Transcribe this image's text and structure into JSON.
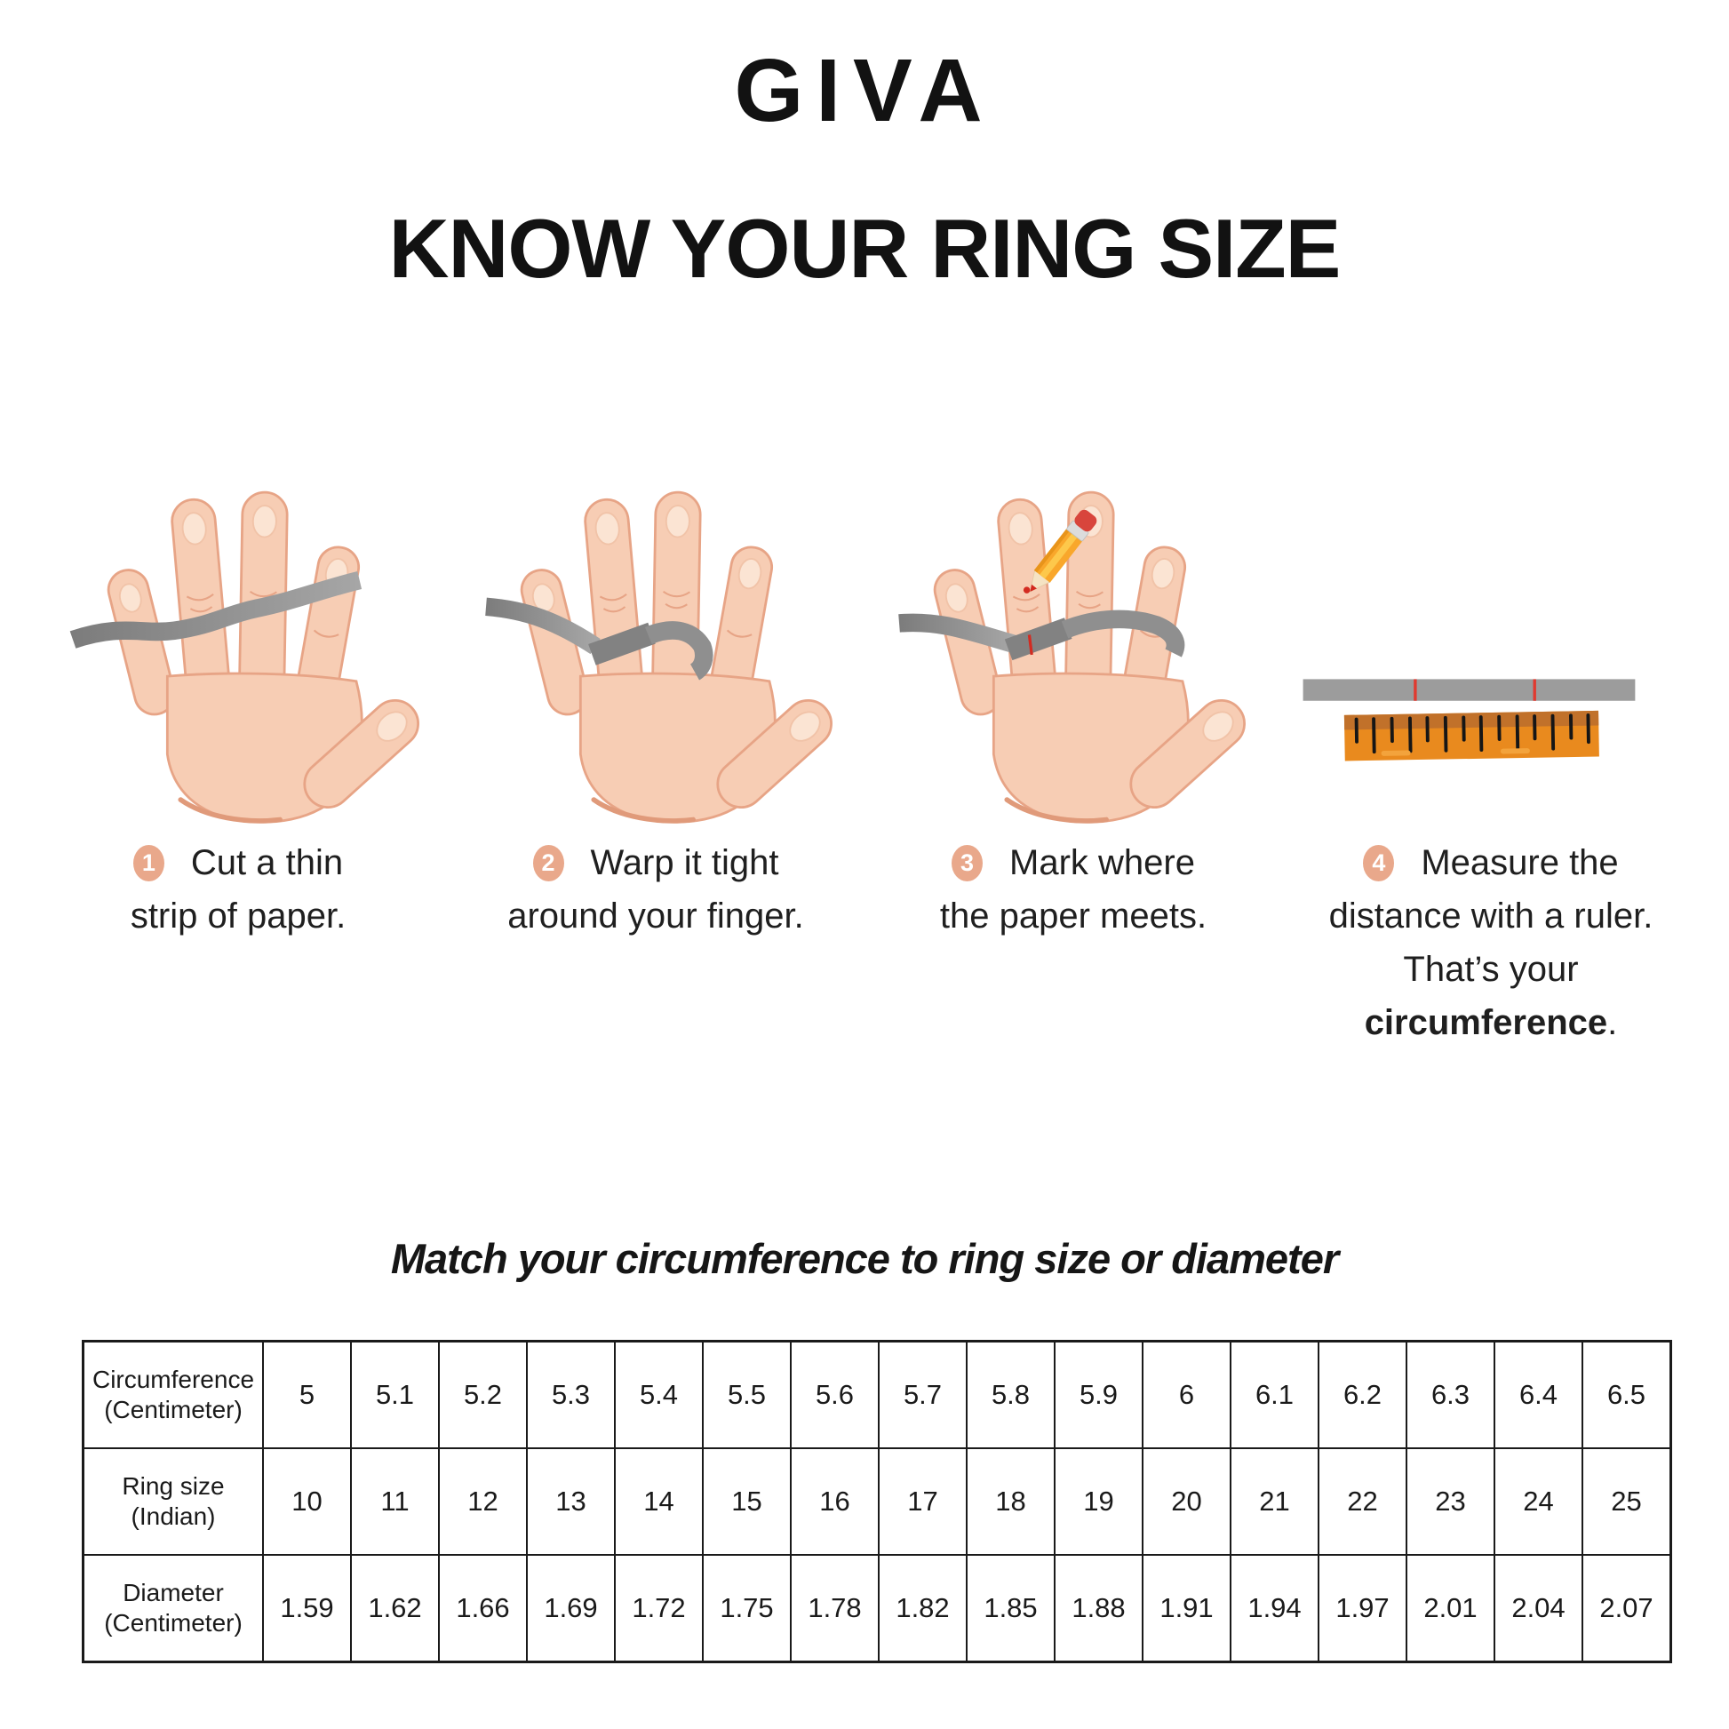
{
  "brand": {
    "logo": "GIVA"
  },
  "heading": "KNOW YOUR RING SIZE",
  "steps": [
    {
      "num": "1",
      "line1": "Cut a thin",
      "line2": "strip of paper."
    },
    {
      "num": "2",
      "line1": "Warp it tight",
      "line2": "around your finger."
    },
    {
      "num": "3",
      "line1": "Mark where",
      "line2": "the paper meets."
    },
    {
      "num": "4",
      "line1": "Measure the",
      "line2": "distance with a ruler.",
      "line3_pre": "That’s your ",
      "line3_bold": "circumference",
      "line3_post": "."
    }
  ],
  "section": {
    "table_title": "Match your circumference to ring size or diameter"
  },
  "chart_data": {
    "type": "table",
    "title": "Match your circumference to ring size or diameter",
    "row_labels": [
      [
        "Circumference",
        "(Centimeter)"
      ],
      [
        "Ring size",
        "(Indian)"
      ],
      [
        "Diameter",
        "(Centimeter)"
      ]
    ],
    "rows": [
      [
        "5",
        "5.1",
        "5.2",
        "5.3",
        "5.4",
        "5.5",
        "5.6",
        "5.7",
        "5.8",
        "5.9",
        "6",
        "6.1",
        "6.2",
        "6.3",
        "6.4",
        "6.5"
      ],
      [
        "10",
        "11",
        "12",
        "13",
        "14",
        "15",
        "16",
        "17",
        "18",
        "19",
        "20",
        "21",
        "22",
        "23",
        "24",
        "25"
      ],
      [
        "1.59",
        "1.62",
        "1.66",
        "1.69",
        "1.72",
        "1.75",
        "1.78",
        "1.82",
        "1.85",
        "1.88",
        "1.91",
        "1.94",
        "1.97",
        "2.01",
        "2.04",
        "2.07"
      ]
    ]
  },
  "colors": {
    "text": "#1a1a1a",
    "badge_accent": "#E9A88B",
    "skin": "#F7CDB4",
    "skin_outline": "#E7A486",
    "paper_strip_gray": "#8F8F8F",
    "ruler_orange": "#E98A1E",
    "ruler_orange_dark": "#C1712A",
    "mark_red": "#D32B21",
    "table_border": "#1a1a1a"
  }
}
